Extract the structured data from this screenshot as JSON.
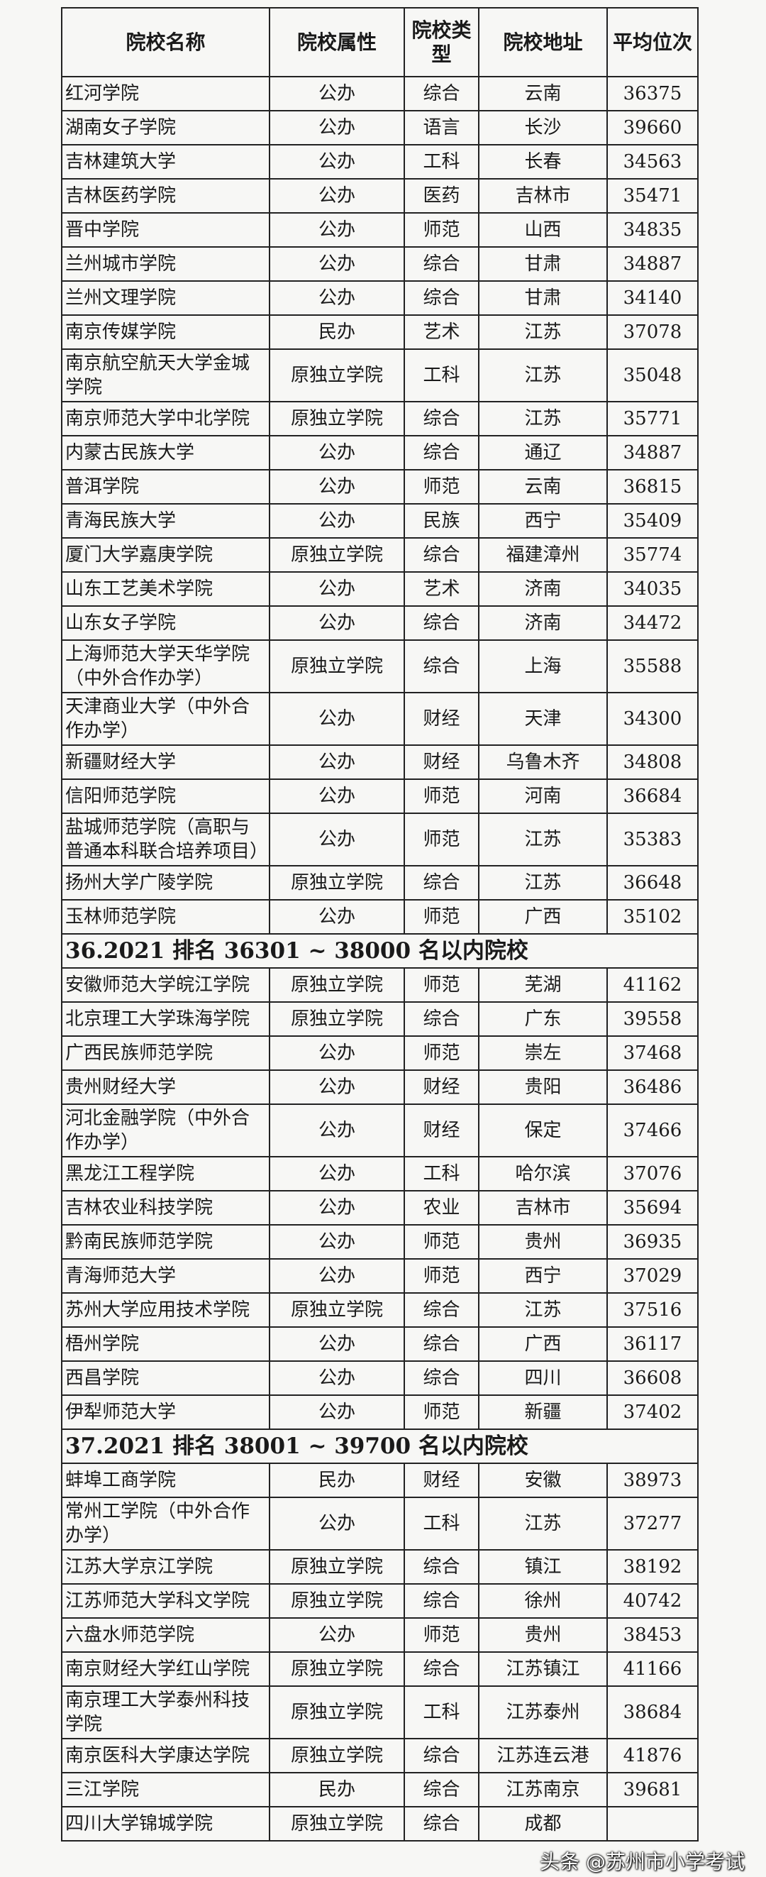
{
  "headers": [
    "院校名称",
    "院校属性",
    "院校类型",
    "院校地址",
    "平均位次"
  ],
  "sections": [
    {
      "title": "",
      "rows": [
        [
          "红河学院",
          "公办",
          "综合",
          "云南",
          "36375"
        ],
        [
          "湖南女子学院",
          "公办",
          "语言",
          "长沙",
          "39660"
        ],
        [
          "吉林建筑大学",
          "公办",
          "工科",
          "长春",
          "34563"
        ],
        [
          "吉林医药学院",
          "公办",
          "医药",
          "吉林市",
          "35471"
        ],
        [
          "晋中学院",
          "公办",
          "师范",
          "山西",
          "34835"
        ],
        [
          "兰州城市学院",
          "公办",
          "综合",
          "甘肃",
          "34887"
        ],
        [
          "兰州文理学院",
          "公办",
          "综合",
          "甘肃",
          "34140"
        ],
        [
          "南京传媒学院",
          "民办",
          "艺术",
          "江苏",
          "37078"
        ],
        [
          "南京航空航天大学金城学院",
          "原独立学院",
          "工科",
          "江苏",
          "35048"
        ],
        [
          "南京师范大学中北学院",
          "原独立学院",
          "综合",
          "江苏",
          "35771"
        ],
        [
          "内蒙古民族大学",
          "公办",
          "综合",
          "通辽",
          "34887"
        ],
        [
          "普洱学院",
          "公办",
          "师范",
          "云南",
          "36815"
        ],
        [
          "青海民族大学",
          "公办",
          "民族",
          "西宁",
          "35409"
        ],
        [
          "厦门大学嘉庚学院",
          "原独立学院",
          "综合",
          "福建漳州",
          "35774"
        ],
        [
          "山东工艺美术学院",
          "公办",
          "艺术",
          "济南",
          "34035"
        ],
        [
          "山东女子学院",
          "公办",
          "综合",
          "济南",
          "34472"
        ],
        [
          "上海师范大学天华学院（中外合作办学）",
          "原独立学院",
          "综合",
          "上海",
          "35588"
        ],
        [
          "天津商业大学（中外合作办学）",
          "公办",
          "财经",
          "天津",
          "34300"
        ],
        [
          "新疆财经大学",
          "公办",
          "财经",
          "乌鲁木齐",
          "34808"
        ],
        [
          "信阳师范学院",
          "公办",
          "师范",
          "河南",
          "36684"
        ],
        [
          "盐城师范学院（高职与普通本科联合培养项目）",
          "公办",
          "师范",
          "江苏",
          "35383"
        ],
        [
          "扬州大学广陵学院",
          "原独立学院",
          "综合",
          "江苏",
          "36648"
        ],
        [
          "玉林师范学院",
          "公办",
          "师范",
          "广西",
          "35102"
        ]
      ]
    },
    {
      "title": "36.2021 排名 36301 ~ 38000 名以内院校",
      "rows": [
        [
          "安徽师范大学皖江学院",
          "原独立学院",
          "师范",
          "芜湖",
          "41162"
        ],
        [
          "北京理工大学珠海学院",
          "原独立学院",
          "综合",
          "广东",
          "39558"
        ],
        [
          "广西民族师范学院",
          "公办",
          "师范",
          "崇左",
          "37468"
        ],
        [
          "贵州财经大学",
          "公办",
          "财经",
          "贵阳",
          "36486"
        ],
        [
          "河北金融学院（中外合作办学）",
          "公办",
          "财经",
          "保定",
          "37466"
        ],
        [
          "黑龙江工程学院",
          "公办",
          "工科",
          "哈尔滨",
          "37076"
        ],
        [
          "吉林农业科技学院",
          "公办",
          "农业",
          "吉林市",
          "35694"
        ],
        [
          "黔南民族师范学院",
          "公办",
          "师范",
          "贵州",
          "36935"
        ],
        [
          "青海师范大学",
          "公办",
          "师范",
          "西宁",
          "37029"
        ],
        [
          "苏州大学应用技术学院",
          "原独立学院",
          "综合",
          "江苏",
          "37516"
        ],
        [
          "梧州学院",
          "公办",
          "综合",
          "广西",
          "36117"
        ],
        [
          "西昌学院",
          "公办",
          "综合",
          "四川",
          "36608"
        ],
        [
          "伊犁师范大学",
          "公办",
          "师范",
          "新疆",
          "37402"
        ]
      ]
    },
    {
      "title": "37.2021 排名 38001 ~ 39700 名以内院校",
      "rows": [
        [
          "蚌埠工商学院",
          "民办",
          "财经",
          "安徽",
          "38973"
        ],
        [
          "常州工学院（中外合作办学）",
          "公办",
          "工科",
          "江苏",
          "37277"
        ],
        [
          "江苏大学京江学院",
          "原独立学院",
          "综合",
          "镇江",
          "38192"
        ],
        [
          "江苏师范大学科文学院",
          "原独立学院",
          "综合",
          "徐州",
          "40742"
        ],
        [
          "六盘水师范学院",
          "公办",
          "师范",
          "贵州",
          "38453"
        ],
        [
          "南京财经大学红山学院",
          "原独立学院",
          "综合",
          "江苏镇江",
          "41166"
        ],
        [
          "南京理工大学泰州科技学院",
          "原独立学院",
          "工科",
          "江苏泰州",
          "38684"
        ],
        [
          "南京医科大学康达学院",
          "原独立学院",
          "综合",
          "江苏连云港",
          "41876"
        ],
        [
          "三江学院",
          "民办",
          "综合",
          "江苏南京",
          "39681"
        ],
        [
          "四川大学锦城学院",
          "原独立学院",
          "综合",
          "成都",
          ""
        ]
      ]
    }
  ],
  "watermark": "头条 @苏州市小学考试"
}
